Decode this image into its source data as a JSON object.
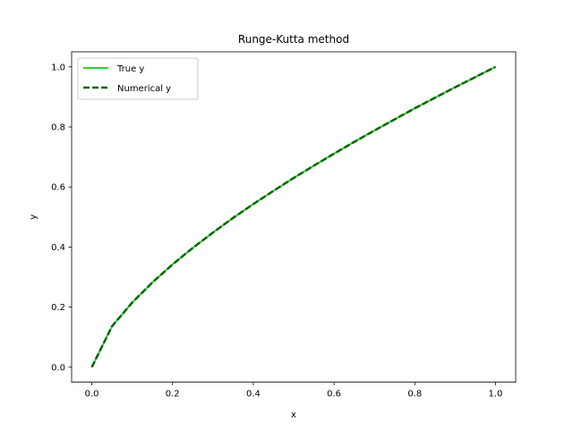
{
  "chart_data": {
    "type": "line",
    "title": "Runge-Kutta method",
    "xlabel": "x",
    "ylabel": "y",
    "xlim": [
      -0.05,
      1.05
    ],
    "ylim": [
      -0.05,
      1.05
    ],
    "xticks": [
      0.0,
      0.2,
      0.4,
      0.6,
      0.8,
      1.0
    ],
    "xtick_labels": [
      "0.0",
      "0.2",
      "0.4",
      "0.6",
      "0.8",
      "1.0"
    ],
    "yticks": [
      0.0,
      0.2,
      0.4,
      0.6,
      0.8,
      1.0
    ],
    "ytick_labels": [
      "0.0",
      "0.2",
      "0.4",
      "0.6",
      "0.8",
      "1.0"
    ],
    "grid": false,
    "legend_position": "top-left",
    "x": [
      0.0,
      0.05,
      0.1,
      0.15,
      0.2,
      0.25,
      0.3,
      0.35,
      0.4,
      0.45,
      0.5,
      0.55,
      0.6,
      0.65,
      0.7,
      0.75,
      0.8,
      0.85,
      0.9,
      0.95,
      1.0
    ],
    "series": [
      {
        "name": "True y",
        "color": "#32cd32",
        "style": "solid",
        "values": [
          0.0,
          0.136,
          0.215,
          0.282,
          0.342,
          0.397,
          0.448,
          0.497,
          0.543,
          0.587,
          0.63,
          0.671,
          0.711,
          0.75,
          0.788,
          0.825,
          0.862,
          0.897,
          0.932,
          0.966,
          1.0
        ]
      },
      {
        "name": "Numerical y",
        "color": "#006400",
        "style": "dashed",
        "values": [
          0.0,
          0.136,
          0.215,
          0.282,
          0.342,
          0.397,
          0.448,
          0.497,
          0.543,
          0.587,
          0.63,
          0.671,
          0.711,
          0.75,
          0.788,
          0.825,
          0.862,
          0.897,
          0.932,
          0.966,
          1.0
        ]
      }
    ]
  }
}
